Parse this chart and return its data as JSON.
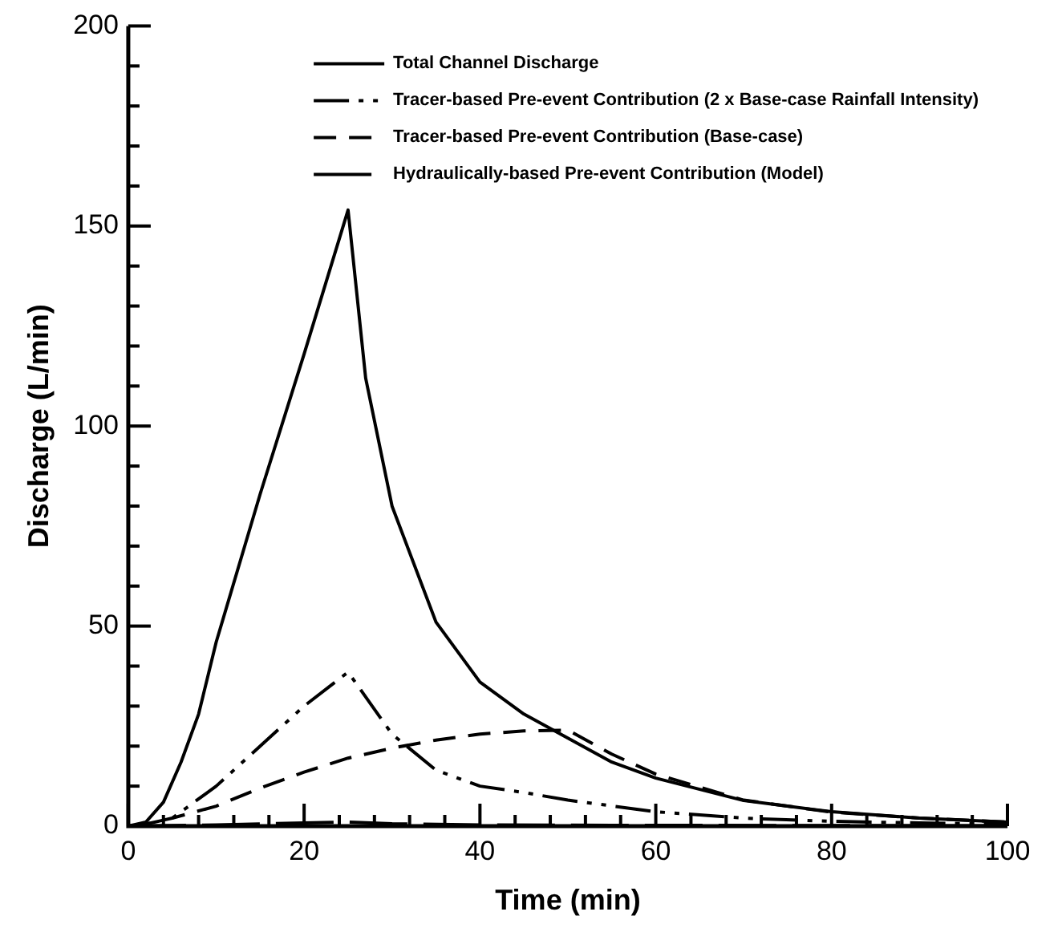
{
  "chart_data": {
    "type": "line",
    "xlabel": "Time (min)",
    "ylabel": "Discharge (L/min)",
    "xlim": [
      0,
      100
    ],
    "ylim": [
      0,
      200
    ],
    "xticks": [
      0,
      {
        "value": 4,
        "label": null
      },
      {
        "value": 8,
        "label": null
      },
      {
        "value": 12,
        "label": null
      },
      {
        "value": 16,
        "label": null
      },
      20,
      {
        "value": 24,
        "label": null
      },
      {
        "value": 28,
        "label": null
      },
      {
        "value": 32,
        "label": null
      },
      {
        "value": 36,
        "label": null
      },
      40,
      {
        "value": 44,
        "label": null
      },
      {
        "value": 48,
        "label": null
      },
      {
        "value": 52,
        "label": null
      },
      {
        "value": 56,
        "label": null
      },
      60,
      {
        "value": 64,
        "label": null
      },
      {
        "value": 68,
        "label": null
      },
      {
        "value": 72,
        "label": null
      },
      {
        "value": 76,
        "label": null
      },
      80,
      {
        "value": 84,
        "label": null
      },
      {
        "value": 88,
        "label": null
      },
      {
        "value": 92,
        "label": null
      },
      {
        "value": 96,
        "label": null
      },
      100
    ],
    "yticks": [
      0,
      {
        "value": 10,
        "label": null
      },
      {
        "value": 20,
        "label": null
      },
      {
        "value": 30,
        "label": null
      },
      {
        "value": 40,
        "label": null
      },
      50,
      {
        "value": 60,
        "label": null
      },
      {
        "value": 70,
        "label": null
      },
      {
        "value": 80,
        "label": null
      },
      {
        "value": 90,
        "label": null
      },
      100,
      {
        "value": 110,
        "label": null
      },
      {
        "value": 120,
        "label": null
      },
      {
        "value": 130,
        "label": null
      },
      {
        "value": 140,
        "label": null
      },
      150,
      {
        "value": 160,
        "label": null
      },
      {
        "value": 170,
        "label": null
      },
      {
        "value": 180,
        "label": null
      },
      {
        "value": 190,
        "label": null
      },
      200
    ],
    "grid": false,
    "legend": "top right",
    "marker": "none",
    "series": [
      {
        "name": "Total Channel Discharge",
        "color": "#000000",
        "line_style": "solid",
        "x": [
          0,
          2,
          4,
          6,
          8,
          10,
          15,
          20,
          25,
          27,
          30,
          35,
          40,
          45,
          50,
          55,
          60,
          70,
          80,
          90,
          100
        ],
        "values": [
          0,
          1,
          6,
          16,
          28,
          46,
          83,
          118,
          154,
          112,
          80,
          51,
          36,
          28,
          22,
          16,
          12,
          6.4,
          3.6,
          2,
          1
        ]
      },
      {
        "name": "Tracer-based Pre-event Contribution (2 x Base-case Rainfall Intensity)",
        "color": "#000000",
        "line_style": "dashdot",
        "x": [
          0,
          2,
          5,
          10,
          15,
          20,
          25,
          30,
          35,
          40,
          45,
          50,
          60,
          70,
          80,
          90,
          100
        ],
        "values": [
          0,
          0.5,
          2,
          10,
          20,
          30,
          38.5,
          23,
          14,
          10,
          8.4,
          6.5,
          3.6,
          2,
          1.2,
          0.8,
          0.5
        ]
      },
      {
        "name": "Tracer-based Pre-event Contribution (Base-case)",
        "color": "#000000",
        "line_style": "dashed",
        "x": [
          0,
          2,
          5,
          10,
          15,
          20,
          25,
          30,
          35,
          40,
          45,
          50,
          55,
          60,
          70,
          80,
          90,
          100
        ],
        "values": [
          0,
          0.5,
          2,
          5,
          9.5,
          13.5,
          17,
          19.5,
          21.5,
          23,
          23.8,
          24,
          18,
          13,
          6.5,
          3.5,
          2,
          1
        ]
      },
      {
        "name": "Hydraulically-based Pre-event Contribution (Model)",
        "color": "#000000",
        "line_style": "longdash",
        "x": [
          0,
          10,
          20,
          25,
          30,
          40,
          60,
          100
        ],
        "values": [
          0,
          0.3,
          0.8,
          1,
          0.6,
          0.3,
          0.2,
          0.1
        ]
      }
    ]
  }
}
